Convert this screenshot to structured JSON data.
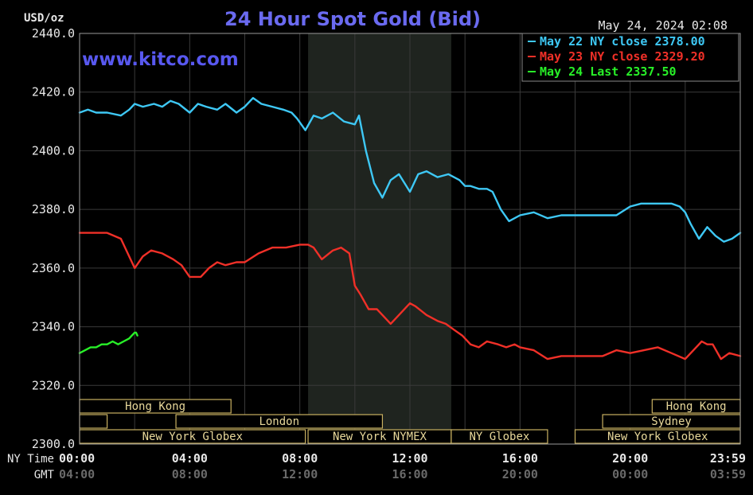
{
  "chart_data": {
    "type": "line",
    "title": "24 Hour Spot Gold (Bid)",
    "ylabel": "USD/oz",
    "watermark": "www.kitco.com",
    "timestamp": "May 24, 2024 02:08",
    "ylim": [
      2300,
      2440
    ],
    "xlim": [
      0,
      24
    ],
    "yticks": [
      "2440.0",
      "2420.0",
      "2400.0",
      "2380.0",
      "2360.0",
      "2340.0",
      "2320.0",
      "2300.0"
    ],
    "x_axis_rows": [
      {
        "label": "NY Time",
        "ticks": [
          "00:00",
          "04:00",
          "08:00",
          "12:00",
          "16:00",
          "20:00",
          "23:59"
        ]
      },
      {
        "label": "GMT",
        "ticks": [
          "04:00",
          "08:00",
          "12:00",
          "16:00",
          "20:00",
          "00:00",
          "03:59"
        ]
      }
    ],
    "grid": true,
    "legend_position": "top-right",
    "shaded_hours": [
      8.3,
      13.5
    ],
    "sessions": [
      {
        "label": "Hong Kong",
        "start": 0,
        "end": 5.5,
        "row": 0
      },
      {
        "label": "",
        "start": 0,
        "end": 1.0,
        "row": 1
      },
      {
        "label": "London",
        "start": 3.5,
        "end": 11.0,
        "row": 1
      },
      {
        "label": "New York Globex",
        "start": 0,
        "end": 8.2,
        "row": 2
      },
      {
        "label": "New York NYMEX",
        "start": 8.3,
        "end": 13.5,
        "row": 2
      },
      {
        "label": "NY Globex",
        "start": 13.5,
        "end": 17.0,
        "row": 2
      },
      {
        "label": "Hong Kong",
        "start": 20.8,
        "end": 24,
        "row": 0
      },
      {
        "label": "Sydney",
        "start": 19.0,
        "end": 24,
        "row": 1
      },
      {
        "label": "New York Globex",
        "start": 18.0,
        "end": 24,
        "row": 2
      }
    ],
    "series": [
      {
        "name": "May 22 NY close 2378.00",
        "color": "#3ec8f5",
        "x": [
          0,
          0.3,
          0.6,
          1,
          1.5,
          1.8,
          2,
          2.3,
          2.7,
          3,
          3.3,
          3.6,
          4,
          4.3,
          4.6,
          5,
          5.3,
          5.7,
          6,
          6.3,
          6.6,
          7,
          7.4,
          7.7,
          7.9,
          8.2,
          8.5,
          8.8,
          9.2,
          9.6,
          10,
          10.15,
          10.4,
          10.7,
          11,
          11.3,
          11.6,
          12,
          12.3,
          12.6,
          13,
          13.4,
          13.8,
          14,
          14.2,
          14.5,
          14.8,
          15,
          15.3,
          15.6,
          16,
          16.5,
          17,
          17.5,
          18,
          18.5,
          19,
          19.5,
          20,
          20.4,
          20.8,
          21.2,
          21.5,
          21.8,
          22,
          22.2,
          22.5,
          22.8,
          23.1,
          23.4,
          23.7,
          24
        ],
        "y": [
          2413,
          2414,
          2413,
          2413,
          2412,
          2414,
          2416,
          2415,
          2416,
          2415,
          2417,
          2416,
          2413,
          2416,
          2415,
          2414,
          2416,
          2413,
          2415,
          2418,
          2416,
          2415,
          2414,
          2413,
          2411,
          2407,
          2412,
          2411,
          2413,
          2410,
          2409,
          2412,
          2400,
          2389,
          2384,
          2390,
          2392,
          2386,
          2392,
          2393,
          2391,
          2392,
          2390,
          2388,
          2388,
          2387,
          2387,
          2386,
          2380,
          2376,
          2378,
          2379,
          2377,
          2378,
          2378,
          2378,
          2378,
          2378,
          2381,
          2382,
          2382,
          2382,
          2382,
          2381,
          2379,
          2375,
          2370,
          2374,
          2371,
          2369,
          2370,
          2372
        ]
      },
      {
        "name": "May 23 NY close 2329.20",
        "color": "#f03028",
        "x": [
          0,
          0.5,
          1,
          1.5,
          1.7,
          2,
          2.3,
          2.6,
          3,
          3.4,
          3.7,
          4,
          4.4,
          4.7,
          5,
          5.3,
          5.7,
          6,
          6.5,
          7,
          7.5,
          8,
          8.3,
          8.5,
          8.8,
          9.2,
          9.5,
          9.8,
          10,
          10.2,
          10.5,
          10.8,
          11,
          11.3,
          11.6,
          12,
          12.2,
          12.6,
          13,
          13.3,
          13.6,
          13.9,
          14.2,
          14.5,
          14.8,
          15.2,
          15.5,
          15.8,
          16,
          16.5,
          17,
          17.5,
          18,
          18.5,
          19,
          19.5,
          20,
          20.5,
          21,
          21.5,
          22,
          22.3,
          22.6,
          22.8,
          23,
          23.3,
          23.6,
          24
        ],
        "y": [
          2372,
          2372,
          2372,
          2370,
          2366,
          2360,
          2364,
          2366,
          2365,
          2363,
          2361,
          2357,
          2357,
          2360,
          2362,
          2361,
          2362,
          2362,
          2365,
          2367,
          2367,
          2368,
          2368,
          2367,
          2363,
          2366,
          2367,
          2365,
          2354,
          2351,
          2346,
          2346,
          2344,
          2341,
          2344,
          2348,
          2347,
          2344,
          2342,
          2341,
          2339,
          2337,
          2334,
          2333,
          2335,
          2334,
          2333,
          2334,
          2333,
          2332,
          2329,
          2330,
          2330,
          2330,
          2330,
          2332,
          2331,
          2332,
          2333,
          2331,
          2329,
          2332,
          2335,
          2334,
          2334,
          2329,
          2331,
          2330
        ]
      },
      {
        "name": "May 24 Last 2337.50",
        "color": "#28f028",
        "x": [
          0,
          0.2,
          0.4,
          0.6,
          0.8,
          1,
          1.2,
          1.4,
          1.6,
          1.8,
          1.9,
          2,
          2.05,
          2.1
        ],
        "y": [
          2331,
          2332,
          2333,
          2333,
          2334,
          2334,
          2335,
          2334,
          2335,
          2336,
          2337,
          2338,
          2338,
          2337
        ]
      }
    ]
  }
}
